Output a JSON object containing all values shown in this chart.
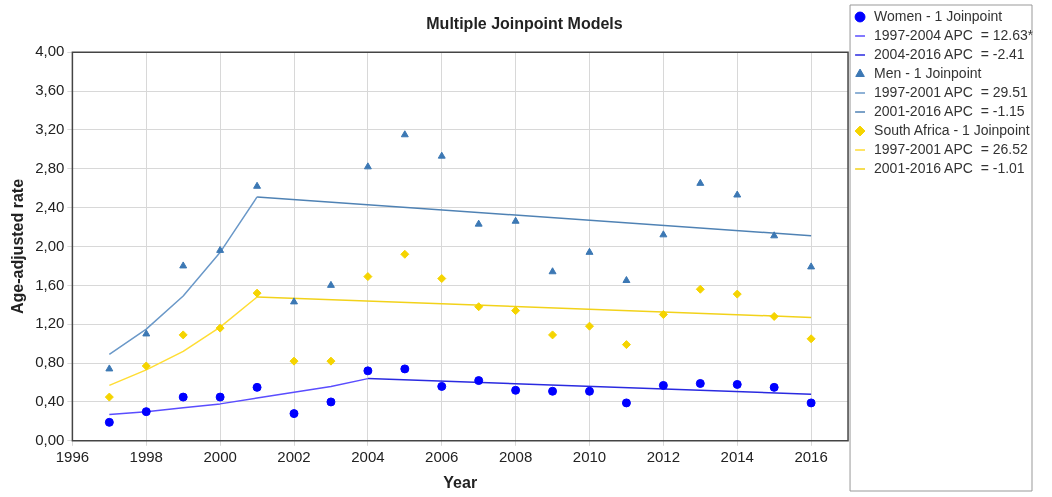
{
  "chart_data": {
    "type": "scatter",
    "title": "Multiple Joinpoint Models",
    "xlabel": "Year",
    "ylabel": "Age-adjusted rate",
    "x": [
      1997,
      1998,
      1999,
      2000,
      2001,
      2002,
      2003,
      2004,
      2005,
      2006,
      2007,
      2008,
      2009,
      2010,
      2011,
      2012,
      2013,
      2014,
      2015,
      2016
    ],
    "series": [
      {
        "name": "Women - 1 Joinpoint",
        "type": "scatter",
        "marker": "circle",
        "color": "#0000ff",
        "values": [
          0.19,
          0.3,
          0.45,
          0.45,
          0.55,
          0.28,
          0.4,
          0.72,
          0.74,
          0.56,
          0.62,
          0.52,
          0.51,
          0.51,
          0.39,
          0.57,
          0.59,
          0.58,
          0.55,
          0.39
        ]
      },
      {
        "name": "1997-2004 APC  = 12.63*",
        "type": "line",
        "marker": "none",
        "color": "#5a4dff",
        "x": [
          1997,
          1998,
          1999,
          2000,
          2001,
          2002,
          2003,
          2004
        ],
        "values": [
          0.27,
          0.3,
          0.34,
          0.38,
          0.44,
          0.5,
          0.56,
          0.64
        ]
      },
      {
        "name": "2004-2016 APC  = -2.41",
        "type": "line",
        "marker": "none",
        "color": "#2a2ae0",
        "x": [
          2004,
          2016
        ],
        "values": [
          0.64,
          0.48
        ]
      },
      {
        "name": "Men - 1 Joinpoint",
        "type": "scatter",
        "marker": "triangle",
        "color": "#3c78b4",
        "values": [
          0.74,
          1.1,
          1.8,
          1.96,
          2.62,
          1.43,
          1.6,
          2.82,
          3.15,
          2.93,
          2.23,
          2.26,
          1.74,
          1.94,
          1.65,
          2.12,
          2.65,
          2.53,
          2.11,
          1.79
        ]
      },
      {
        "name": "1997-2001 APC  = 29.51",
        "type": "line",
        "marker": "none",
        "color": "#6a98c8",
        "x": [
          1997,
          1998,
          1999,
          2000,
          2001
        ],
        "values": [
          0.89,
          1.15,
          1.49,
          1.94,
          2.51
        ]
      },
      {
        "name": "2001-2016 APC  = -1.15",
        "type": "line",
        "marker": "none",
        "color": "#4f82b4",
        "x": [
          2001,
          2016
        ],
        "values": [
          2.51,
          2.11
        ]
      },
      {
        "name": "South Africa - 1 Joinpoint",
        "type": "scatter",
        "marker": "diamond",
        "color": "#f5d400",
        "values": [
          0.45,
          0.77,
          1.09,
          1.16,
          1.52,
          0.82,
          0.82,
          1.69,
          1.92,
          1.67,
          1.38,
          1.34,
          1.09,
          1.18,
          0.99,
          1.3,
          1.56,
          1.51,
          1.28,
          1.05
        ]
      },
      {
        "name": "1997-2001 APC  = 26.52",
        "type": "line",
        "marker": "none",
        "color": "#ffdd33",
        "x": [
          1997,
          1998,
          1999,
          2000,
          2001
        ],
        "values": [
          0.57,
          0.73,
          0.92,
          1.17,
          1.48
        ]
      },
      {
        "name": "2001-2016 APC  = -1.01",
        "type": "line",
        "marker": "none",
        "color": "#f2d21a",
        "x": [
          2001,
          2016
        ],
        "values": [
          1.48,
          1.27
        ]
      }
    ],
    "xlim": [
      1996,
      2017
    ],
    "xticks": [
      1996,
      1998,
      2000,
      2002,
      2004,
      2006,
      2008,
      2010,
      2012,
      2014,
      2016
    ],
    "ylim": [
      0,
      4
    ],
    "yticks": [
      {
        "value": 0,
        "label": "0,00"
      },
      {
        "value": 0.4,
        "label": "0,40"
      },
      {
        "value": 0.8,
        "label": "0,80"
      },
      {
        "value": 1.2,
        "label": "1,20"
      },
      {
        "value": 1.6,
        "label": "1,60"
      },
      {
        "value": 2.0,
        "label": "2,00"
      },
      {
        "value": 2.4,
        "label": "2,40"
      },
      {
        "value": 2.8,
        "label": "2,80"
      },
      {
        "value": 3.2,
        "label": "3,20"
      },
      {
        "value": 3.6,
        "label": "3,60"
      },
      {
        "value": 4.0,
        "label": "4,00"
      }
    ],
    "grid": true,
    "legend": "right",
    "line_style": "solid"
  }
}
